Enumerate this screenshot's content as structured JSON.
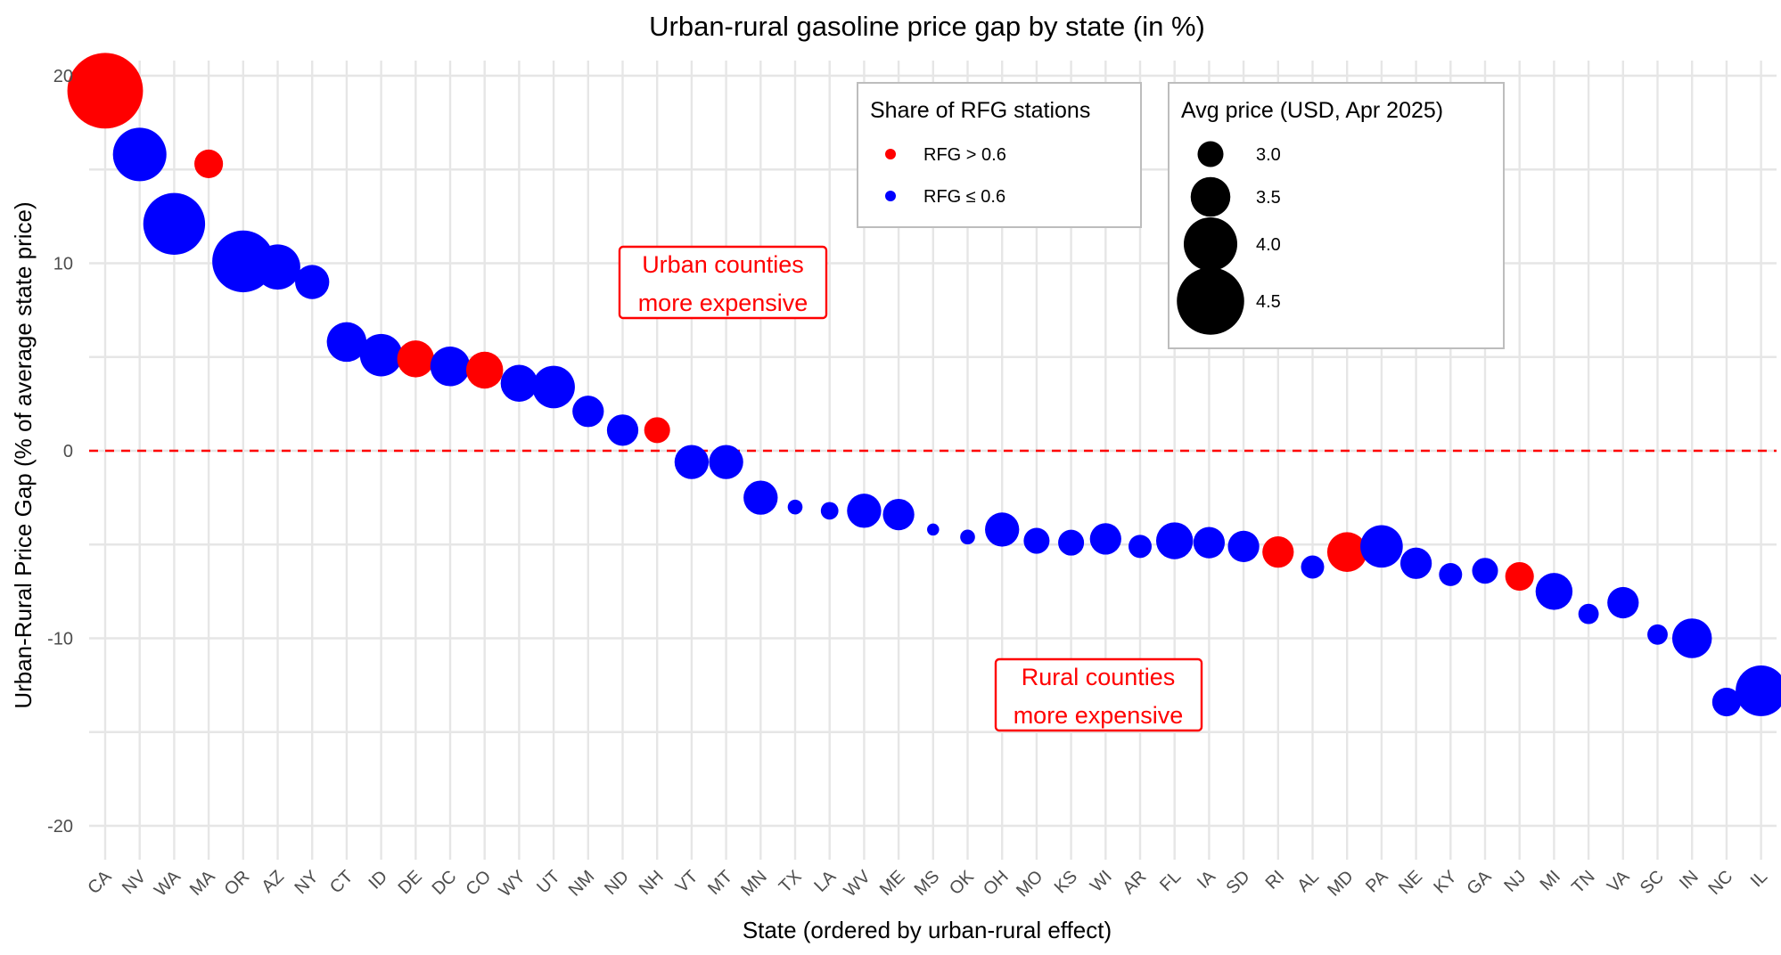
{
  "chart_data": {
    "type": "scatter",
    "title": "Urban-rural gasoline price gap by state (in %)",
    "xlabel": "State (ordered by urban-rural effect)",
    "ylabel": "Urban-Rural Price Gap (% of average state price)",
    "ylim": [
      -22,
      21
    ],
    "yticks": [
      20,
      10,
      0,
      -10,
      -20
    ],
    "ytick_labels": [
      "20",
      "10",
      "0",
      "-10",
      "-20"
    ],
    "grid": true,
    "reference_line": {
      "y": 0,
      "style": "dashed",
      "color": "#ff0000"
    },
    "colors": {
      "rfg_high": "#ff0000",
      "rfg_low": "#0000ff"
    },
    "categories": [
      "CA",
      "NV",
      "WA",
      "MA",
      "OR",
      "AZ",
      "NY",
      "CT",
      "ID",
      "DE",
      "DC",
      "CO",
      "WY",
      "UT",
      "NM",
      "ND",
      "NH",
      "VT",
      "MT",
      "MN",
      "TX",
      "LA",
      "WV",
      "ME",
      "MS",
      "OK",
      "OH",
      "MO",
      "KS",
      "WI",
      "AR",
      "FL",
      "IA",
      "SD",
      "RI",
      "AL",
      "MD",
      "PA",
      "NE",
      "KY",
      "GA",
      "NJ",
      "MI",
      "TN",
      "VA",
      "SC",
      "IN",
      "NC",
      "IL"
    ],
    "values": [
      19.2,
      15.8,
      12.1,
      15.3,
      10.1,
      9.8,
      9.0,
      5.8,
      5.1,
      4.9,
      4.5,
      4.3,
      3.6,
      3.4,
      2.1,
      1.1,
      1.1,
      -0.6,
      -0.6,
      -2.5,
      -3.0,
      -3.2,
      -3.2,
      -3.4,
      -4.2,
      -4.6,
      -4.2,
      -4.8,
      -4.9,
      -4.7,
      -5.1,
      -4.8,
      -4.9,
      -5.1,
      -5.4,
      -6.2,
      -5.4,
      -5.1,
      -6.0,
      -6.6,
      -6.4,
      -6.7,
      -7.5,
      -8.7,
      -8.1,
      -9.8,
      -10.0,
      -13.4,
      -12.8
    ],
    "avg_price": [
      4.8,
      4.0,
      4.3,
      3.1,
      4.3,
      3.7,
      3.3,
      3.5,
      3.6,
      3.4,
      3.5,
      3.4,
      3.4,
      3.6,
      3.2,
      3.2,
      3.0,
      3.3,
      3.3,
      3.3,
      2.6,
      2.7,
      3.3,
      3.2,
      2.5,
      2.6,
      3.3,
      3.0,
      3.0,
      3.2,
      2.9,
      3.4,
      3.2,
      3.2,
      3.2,
      2.9,
      3.5,
      3.6,
      3.2,
      2.9,
      3.0,
      3.1,
      3.4,
      2.8,
      3.2,
      2.8,
      3.5,
      3.1,
      3.9
    ],
    "rfg_gt_06": [
      true,
      false,
      false,
      true,
      false,
      false,
      false,
      false,
      false,
      true,
      false,
      true,
      false,
      false,
      false,
      false,
      true,
      false,
      false,
      false,
      false,
      false,
      false,
      false,
      false,
      false,
      false,
      false,
      false,
      false,
      false,
      false,
      false,
      false,
      true,
      false,
      true,
      false,
      false,
      false,
      false,
      true,
      false,
      false,
      false,
      false,
      false,
      false,
      false
    ],
    "legend_color": {
      "title": "Share of RFG stations",
      "entries": [
        {
          "label": "RFG > 0.6",
          "color": "#ff0000"
        },
        {
          "label": "RFG ≤ 0.6",
          "color": "#0000ff"
        }
      ],
      "placement": "top-right"
    },
    "legend_size": {
      "title": "Avg price (USD, Apr 2025)",
      "entries": [
        {
          "label": "3.0",
          "value": 3.0
        },
        {
          "label": "3.5",
          "value": 3.5
        },
        {
          "label": "4.0",
          "value": 4.0
        },
        {
          "label": "4.5",
          "value": 4.5
        }
      ],
      "placement": "top-right"
    },
    "annotations": [
      {
        "lines": [
          "Urban counties",
          "more expensive"
        ],
        "x": "NM",
        "y": 8.9
      },
      {
        "lines": [
          "Rural counties",
          "more expensive"
        ],
        "x": "WI",
        "y": -13.1
      }
    ]
  }
}
